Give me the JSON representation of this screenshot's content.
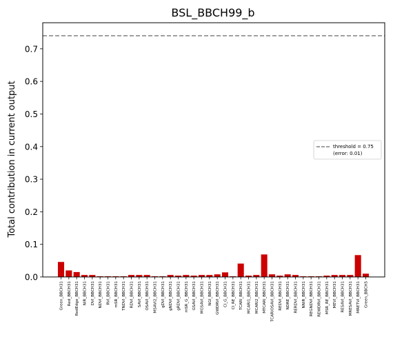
{
  "chart_data": {
    "type": "bar",
    "title": "BSL_BBCH99_b",
    "xlabel": "",
    "ylabel": "Total contribution in current output",
    "ylim": [
      0,
      0.78
    ],
    "yticks": [
      0.0,
      0.1,
      0.2,
      0.3,
      0.4,
      0.5,
      0.6,
      0.7
    ],
    "ytick_labels": [
      "0.0",
      "0.1",
      "0.2",
      "0.3",
      "0.4",
      "0.5",
      "0.6",
      "0.7"
    ],
    "grid": false,
    "bar_color": "#cc0000",
    "threshold_value": 0.74,
    "threshold_color": "#808080",
    "legend": {
      "placement": "center-right",
      "entries": [
        "threshold = 0.75",
        "(error: 0.01)"
      ]
    },
    "categories": [
      "Green_BBCH31",
      "Red_BBCH31",
      "RedEdge_BBCH31",
      "NIR_BBCH31",
      "DVI_BBCH31",
      "NDVI_BBCH31",
      "RVI_BBCH31",
      "mSR_BBCH31",
      "TNDVI_BBCH31",
      "RDVI_BBCH31",
      "SAVI_BBCH31",
      "OSAVI_BBCH31",
      "MSAVI2_BBCH31",
      "gDVI_BBCH31",
      "gNDVI_BBCH31",
      "gRDVI_BBCH31",
      "mSR_G_BBCH31",
      "GSAVI_BBCH31",
      "MGSAVI_BBCH31",
      "NGI_BBCH31",
      "GWDRVI_BBCH31",
      "CI_G_BBCH31",
      "CI_RE_BBCH31",
      "TCARI_BBCH31",
      "MCARI1_BBCH31",
      "MCARI2_BBCH31",
      "MTCARI_BBCH31",
      "TCARIOSAVI_BBCH31",
      "REDVI_BBCH31",
      "NDRE_BBCH31",
      "RERDVI_BBCH31",
      "NNIR_BBCH31",
      "REGNDVI_BBCH31",
      "REWDRVI_BBCH31",
      "MSR_RE_BBCH31",
      "MEVI_BBCH31",
      "RESAVI_BBCH31",
      "MRESAVI_BBCH31",
      "MRETVI_BBCH31",
      "Green_BBCH5"
    ],
    "values": [
      0.046,
      0.02,
      0.015,
      0.006,
      0.006,
      0.002,
      0.002,
      0.002,
      0.002,
      0.006,
      0.006,
      0.006,
      0.002,
      0.002,
      0.006,
      0.004,
      0.006,
      0.004,
      0.006,
      0.006,
      0.008,
      0.014,
      0.002,
      0.041,
      0.004,
      0.006,
      0.069,
      0.008,
      0.004,
      0.008,
      0.006,
      0.002,
      0.002,
      0.002,
      0.004,
      0.006,
      0.006,
      0.006,
      0.067,
      0.01
    ]
  }
}
